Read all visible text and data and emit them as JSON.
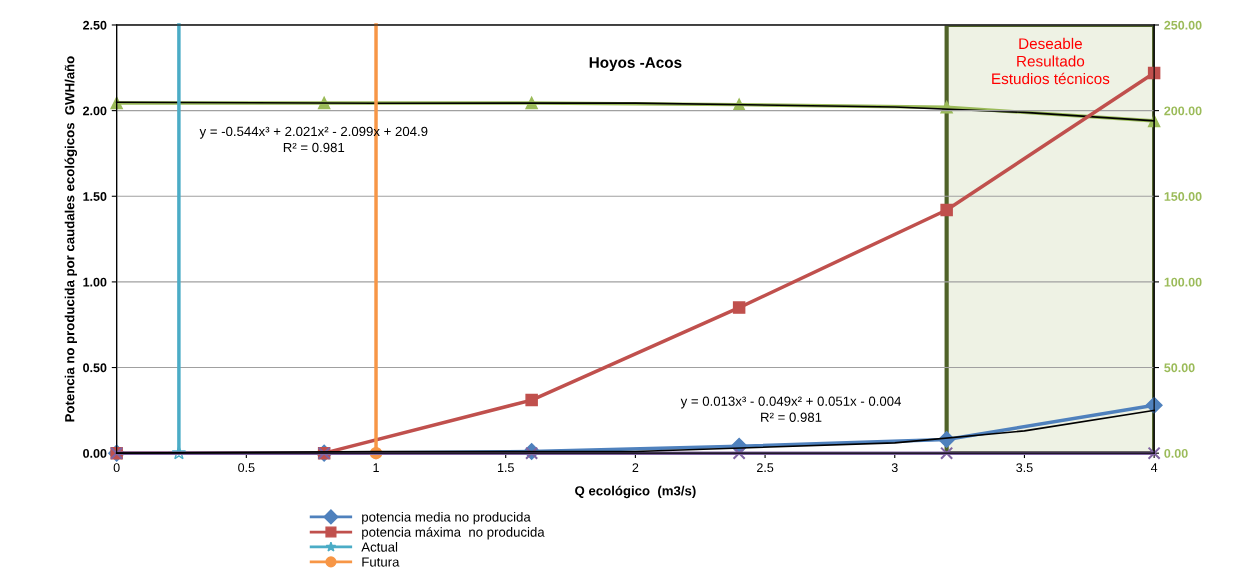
{
  "chart_data": {
    "type": "line",
    "title": "Hoyos -Acos",
    "xlabel": "Q ecológico  (m3/s)",
    "ylabel": "Potencia no producida por caudales ecológicos  GWH/año",
    "xlim": [
      0,
      4
    ],
    "xticks": [
      0,
      0.5,
      1,
      1.5,
      2,
      2.5,
      3,
      3.5,
      4
    ],
    "ylim": [
      0,
      2.5
    ],
    "yticks": [
      {
        "value": 0,
        "label": "0.00"
      },
      {
        "value": 0.5,
        "label": "0.50"
      },
      {
        "value": 1,
        "label": "1.00"
      },
      {
        "value": 1.5,
        "label": "1.50"
      },
      {
        "value": 2,
        "label": "2.00"
      },
      {
        "value": 2.5,
        "label": "2.50"
      }
    ],
    "y2lim": [
      0,
      250
    ],
    "y2ticks": [
      {
        "value": 0,
        "label": "0.00"
      },
      {
        "value": 50,
        "label": "50.00"
      },
      {
        "value": 100,
        "label": "100.00"
      },
      {
        "value": 150,
        "label": "150.00"
      },
      {
        "value": 200,
        "label": "200.00"
      },
      {
        "value": 250,
        "label": "250.00"
      }
    ],
    "grid": "y",
    "legend": "bottom",
    "series": [
      {
        "name": "potencia media no producida",
        "color": "#4f81bd",
        "marker": "diamond",
        "x": [
          0,
          0.8,
          1.6,
          2.4,
          3.2,
          4
        ],
        "values": [
          0,
          0,
          0.01,
          0.04,
          0.08,
          0.28
        ]
      },
      {
        "name": "potencia máxima  no producida",
        "color": "#c0504d",
        "marker": "square",
        "x": [
          0,
          0.8,
          1.6,
          2.4,
          3.2,
          4
        ],
        "values": [
          0,
          0,
          0.31,
          0.85,
          1.42,
          2.22
        ]
      },
      {
        "name": "Actual",
        "color": "#4bacc6",
        "marker": "star",
        "x": [
          0.24,
          0.24
        ],
        "values": [
          0,
          2.5
        ]
      },
      {
        "name": "Futura",
        "color": "#f79646",
        "marker": "circle",
        "x": [
          1,
          1
        ],
        "values": [
          0,
          2.5
        ]
      },
      {
        "color": "#8064a2",
        "marker": "cross",
        "x": [
          0,
          0.8,
          1.6,
          2.4,
          3.2,
          4
        ],
        "values": [
          0,
          0,
          0,
          0,
          0,
          0
        ]
      },
      {
        "color": "#9bbb59",
        "marker": "triangle",
        "axis": "y2",
        "x": [
          0,
          0.8,
          1.6,
          2.4,
          3.2,
          4
        ],
        "values": [
          204.5,
          204.5,
          204.5,
          203.5,
          202,
          194
        ]
      },
      {
        "color": "#000000",
        "marker": "none",
        "axis": "y2",
        "x": [
          0,
          1,
          2,
          3,
          3.5,
          4
        ],
        "values": [
          204.9,
          204.3,
          204.4,
          202.1,
          199,
          194
        ]
      },
      {
        "color": "#000000",
        "marker": "none",
        "x": [
          0,
          1,
          2,
          3,
          3.5,
          4
        ],
        "values": [
          0,
          0.01,
          0.01,
          0.06,
          0.13,
          0.25
        ]
      }
    ],
    "bands": [
      {
        "axis": "x",
        "from": 3.2,
        "to": 4,
        "label": "Deseable\nResultado\nEstudios técnicos",
        "color": "#eef2e4"
      }
    ],
    "annotations": [
      "y = -0.544x³ + 2.021x² - 2.099x + 204.9\nR² = 0.981",
      "y = 0.013x³ - 0.049x² + 0.051x - 0.004\nR² = 0.981"
    ]
  }
}
